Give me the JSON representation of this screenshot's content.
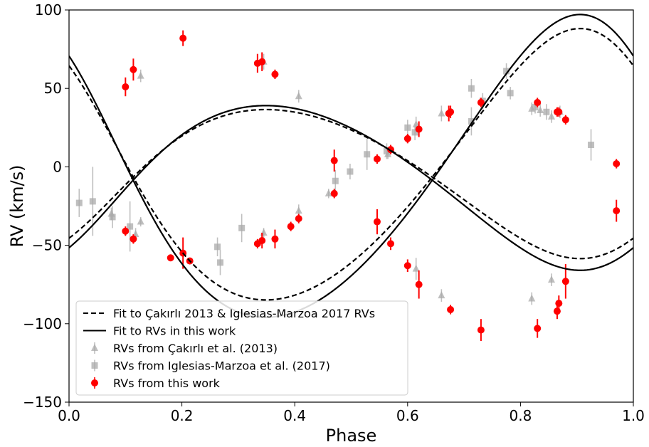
{
  "chart_data": {
    "type": "scatter",
    "xlabel": "Phase",
    "ylabel": "RV (km/s)",
    "xlim": [
      0.0,
      1.0
    ],
    "ylim": [
      -150,
      100
    ],
    "xticks": [
      0.0,
      0.2,
      0.4,
      0.6,
      0.8,
      1.0
    ],
    "xtick_labels": [
      "0.0",
      "0.2",
      "0.4",
      "0.6",
      "0.8",
      "1.0"
    ],
    "yticks": [
      -150,
      -100,
      -50,
      0,
      50,
      100
    ],
    "ytick_labels": [
      "−150",
      "−100",
      "−50",
      "0",
      "50",
      "100"
    ],
    "grid": false,
    "legend_position": "lower-left",
    "curves": [
      {
        "name": "Fit to Çakırlı 2013 & Iglesias-Marzoa 2017 RVs",
        "style": "dashed",
        "color": "#000000",
        "systemic_velocity": -6.5,
        "primary_amplitude": 47.5,
        "secondary_amplitude": 86.5
      },
      {
        "name": "Fit to RVs in this work",
        "style": "solid",
        "color": "#000000",
        "systemic_velocity": -8.5,
        "primary_amplitude": 52.5,
        "secondary_amplitude": 96.5
      }
    ],
    "series": [
      {
        "name": "RVs from Çakırlı et al. (2013)",
        "marker": "triangle",
        "color": "#a9a9a9",
        "points": [
          {
            "x": 0.075,
            "y": -30,
            "err": 4
          },
          {
            "x": 0.118,
            "y": -43,
            "err": 4
          },
          {
            "x": 0.127,
            "y": -35,
            "err": 3
          },
          {
            "x": 0.127,
            "y": 58,
            "err": 4
          },
          {
            "x": 0.345,
            "y": -42,
            "err": 3
          },
          {
            "x": 0.345,
            "y": 67,
            "err": 5
          },
          {
            "x": 0.407,
            "y": -28,
            "err": 4
          },
          {
            "x": 0.407,
            "y": 45,
            "err": 4
          },
          {
            "x": 0.46,
            "y": -17,
            "err": 3
          },
          {
            "x": 0.565,
            "y": 8,
            "err": 3
          },
          {
            "x": 0.615,
            "y": -65,
            "err": 7
          },
          {
            "x": 0.615,
            "y": 27,
            "err": 5
          },
          {
            "x": 0.66,
            "y": -82,
            "err": 4
          },
          {
            "x": 0.66,
            "y": 34,
            "err": 5
          },
          {
            "x": 0.82,
            "y": -84,
            "err": 4
          },
          {
            "x": 0.82,
            "y": 37,
            "err": 4
          },
          {
            "x": 0.835,
            "y": 36,
            "err": 4
          },
          {
            "x": 0.855,
            "y": -72,
            "err": 4
          },
          {
            "x": 0.855,
            "y": 32,
            "err": 4
          },
          {
            "x": 0.87,
            "y": 35,
            "err": 4
          }
        ]
      },
      {
        "name": "RVs from Iglesias-Marzoa et al. (2017)",
        "marker": "square",
        "color": "#a9a9a9",
        "points": [
          {
            "x": 0.018,
            "y": -23,
            "err": 9
          },
          {
            "x": 0.042,
            "y": -22,
            "err": 22
          },
          {
            "x": 0.077,
            "y": -32,
            "err": 7
          },
          {
            "x": 0.108,
            "y": -38,
            "err": 16
          },
          {
            "x": 0.263,
            "y": -51,
            "err": 6
          },
          {
            "x": 0.268,
            "y": -61,
            "err": 8
          },
          {
            "x": 0.306,
            "y": -39,
            "err": 9
          },
          {
            "x": 0.472,
            "y": -9,
            "err": 7
          },
          {
            "x": 0.498,
            "y": -3,
            "err": 5
          },
          {
            "x": 0.528,
            "y": 8,
            "err": 10
          },
          {
            "x": 0.563,
            "y": 10,
            "err": 5
          },
          {
            "x": 0.6,
            "y": 25,
            "err": 5
          },
          {
            "x": 0.613,
            "y": 22,
            "err": 5
          },
          {
            "x": 0.713,
            "y": 50,
            "err": 6
          },
          {
            "x": 0.713,
            "y": 29,
            "err": 9
          },
          {
            "x": 0.733,
            "y": 42,
            "err": 5
          },
          {
            "x": 0.775,
            "y": 61,
            "err": 5
          },
          {
            "x": 0.782,
            "y": 47,
            "err": 4
          },
          {
            "x": 0.826,
            "y": 38,
            "err": 4
          },
          {
            "x": 0.846,
            "y": 35,
            "err": 5
          },
          {
            "x": 0.925,
            "y": 14,
            "err": 10
          }
        ]
      },
      {
        "name": "RVs from this work",
        "marker": "circle",
        "color": "#ff0000",
        "points": [
          {
            "x": 0.1,
            "y": 51,
            "err": 6
          },
          {
            "x": 0.1,
            "y": -41,
            "err": 3
          },
          {
            "x": 0.114,
            "y": 62,
            "err": 7
          },
          {
            "x": 0.114,
            "y": -46,
            "err": 3
          },
          {
            "x": 0.18,
            "y": -58,
            "err": 2
          },
          {
            "x": 0.202,
            "y": 82,
            "err": 5
          },
          {
            "x": 0.202,
            "y": -55,
            "err": 10
          },
          {
            "x": 0.214,
            "y": -60,
            "err": 2
          },
          {
            "x": 0.334,
            "y": 66,
            "err": 6
          },
          {
            "x": 0.334,
            "y": -49,
            "err": 3
          },
          {
            "x": 0.342,
            "y": 67,
            "err": 6
          },
          {
            "x": 0.342,
            "y": -47,
            "err": 5
          },
          {
            "x": 0.365,
            "y": 59,
            "err": 3
          },
          {
            "x": 0.365,
            "y": -46,
            "err": 6
          },
          {
            "x": 0.393,
            "y": -38,
            "err": 3
          },
          {
            "x": 0.407,
            "y": -33,
            "err": 3
          },
          {
            "x": 0.47,
            "y": 4,
            "err": 7
          },
          {
            "x": 0.47,
            "y": -17,
            "err": 3
          },
          {
            "x": 0.546,
            "y": 5,
            "err": 3
          },
          {
            "x": 0.546,
            "y": -35,
            "err": 8
          },
          {
            "x": 0.57,
            "y": 11,
            "err": 3
          },
          {
            "x": 0.57,
            "y": -49,
            "err": 4
          },
          {
            "x": 0.6,
            "y": 18,
            "err": 3
          },
          {
            "x": 0.6,
            "y": -63,
            "err": 4
          },
          {
            "x": 0.62,
            "y": 24,
            "err": 5
          },
          {
            "x": 0.62,
            "y": -75,
            "err": 9
          },
          {
            "x": 0.673,
            "y": 34,
            "err": 5
          },
          {
            "x": 0.676,
            "y": 35,
            "err": 4
          },
          {
            "x": 0.676,
            "y": -91,
            "err": 3
          },
          {
            "x": 0.73,
            "y": 41,
            "err": 3
          },
          {
            "x": 0.73,
            "y": -104,
            "err": 7
          },
          {
            "x": 0.83,
            "y": 41,
            "err": 3
          },
          {
            "x": 0.83,
            "y": -103,
            "err": 6
          },
          {
            "x": 0.865,
            "y": 35,
            "err": 3
          },
          {
            "x": 0.865,
            "y": -92,
            "err": 5
          },
          {
            "x": 0.868,
            "y": 35,
            "err": 3
          },
          {
            "x": 0.868,
            "y": -87,
            "err": 5
          },
          {
            "x": 0.88,
            "y": 30,
            "err": 3
          },
          {
            "x": 0.88,
            "y": -73,
            "err": 11
          },
          {
            "x": 0.97,
            "y": 2,
            "err": 3
          },
          {
            "x": 0.97,
            "y": -28,
            "err": 7
          }
        ]
      }
    ]
  }
}
